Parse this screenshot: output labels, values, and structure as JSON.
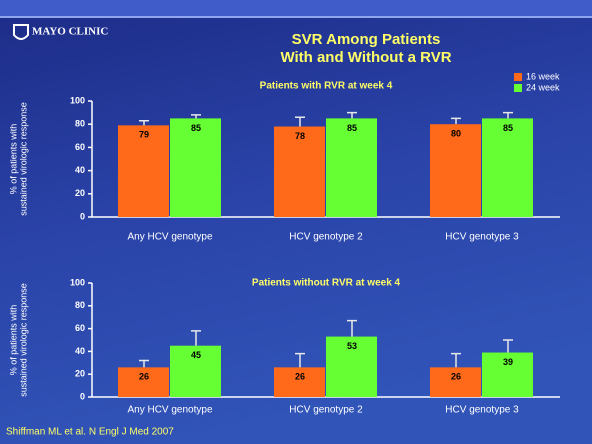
{
  "slide": {
    "logo": "MAYO CLINIC",
    "title_lines": [
      "SVR Among Patients",
      "With and Without a RVR"
    ],
    "footer": "Shiffman ML et al. N Engl J Med 2007"
  },
  "chart_data": [
    {
      "type": "bar",
      "title": "Patients with RVR at week 4",
      "y_label_lines": [
        "% of patients with",
        "sustained virologic response"
      ],
      "categories": [
        "Any HCV genotype",
        "HCV genotype 2",
        "HCV genotype 3"
      ],
      "series": [
        {
          "name": "16 week",
          "color": "#ff6a1a",
          "values": [
            79,
            78,
            80
          ],
          "errors": [
            4,
            8,
            5
          ]
        },
        {
          "name": "24 week",
          "color": "#66ff33",
          "values": [
            85,
            85,
            85
          ],
          "errors": [
            3,
            5,
            5
          ]
        }
      ],
      "ylim": [
        0,
        100
      ],
      "yticks": [
        0,
        20,
        40,
        60,
        80,
        100
      ],
      "legend": "upper right"
    },
    {
      "type": "bar",
      "title": "Patients without RVR at week 4",
      "y_label_lines": [
        "% of patients with",
        "sustained virologic response"
      ],
      "categories": [
        "Any HCV genotype",
        "HCV genotype 2",
        "HCV genotype 3"
      ],
      "series": [
        {
          "color": "#ff6a1a",
          "values": [
            26,
            26,
            26
          ],
          "errors": [
            6,
            12,
            12
          ]
        },
        {
          "color": "#66ff33",
          "values": [
            45,
            53,
            39
          ],
          "errors": [
            13,
            14,
            11
          ]
        }
      ],
      "ylim": [
        0,
        100
      ],
      "yticks": [
        0,
        20,
        40,
        60,
        80,
        100
      ]
    }
  ]
}
